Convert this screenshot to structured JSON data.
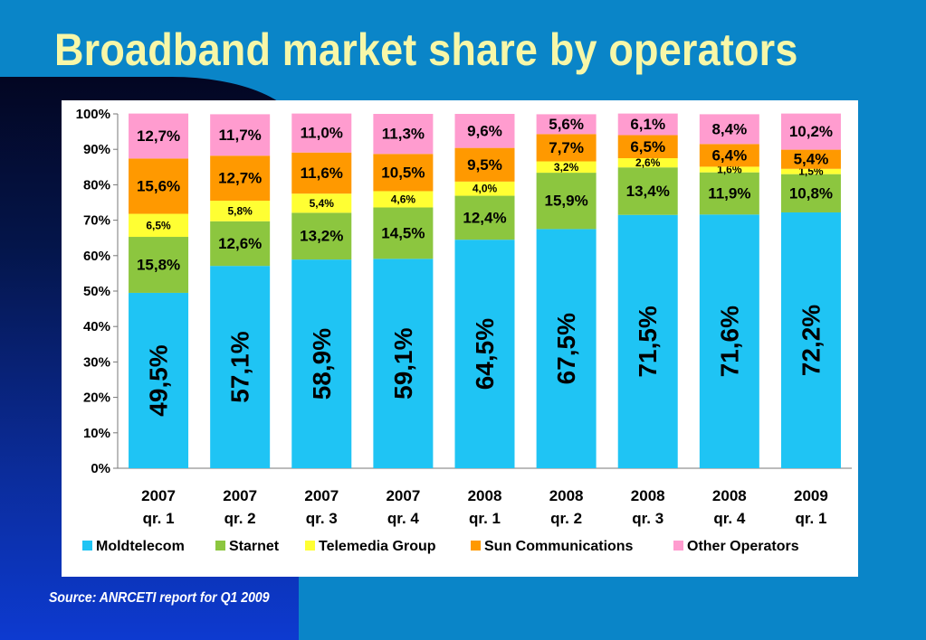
{
  "slide": {
    "title": "Broadband market share by operators",
    "source": "Source: ANRCETI report for Q1 2009"
  },
  "colors": {
    "Moldtelecom": "#1fc4f4",
    "Starnet": "#8cc63f",
    "Telemedia Group": "#ffff33",
    "Sun Communications": "#ff9900",
    "Other Operators": "#ff9ccf"
  },
  "chart_data": {
    "type": "bar",
    "stacked": true,
    "title": "",
    "xlabel": "",
    "ylabel": "",
    "ylim": [
      0,
      100
    ],
    "y_ticks": [
      "0%",
      "10%",
      "20%",
      "30%",
      "40%",
      "50%",
      "60%",
      "70%",
      "80%",
      "90%",
      "100%"
    ],
    "categories": [
      [
        "2007",
        "qr. 1"
      ],
      [
        "2007",
        "qr. 2"
      ],
      [
        "2007",
        "qr. 3"
      ],
      [
        "2007",
        "qr. 4"
      ],
      [
        "2008",
        "qr. 1"
      ],
      [
        "2008",
        "qr. 2"
      ],
      [
        "2008",
        "qr. 3"
      ],
      [
        "2008",
        "qr. 4"
      ],
      [
        "2009",
        "qr. 1"
      ]
    ],
    "legend_position": "bottom",
    "series": [
      {
        "name": "Moldtelecom",
        "values": [
          49.5,
          57.1,
          58.9,
          59.1,
          64.5,
          67.5,
          71.5,
          71.6,
          72.2
        ],
        "labels": [
          "49,5%",
          "57,1%",
          "58,9%",
          "59,1%",
          "64,5%",
          "67,5%",
          "71,5%",
          "71,6%",
          "72,2%"
        ]
      },
      {
        "name": "Starnet",
        "values": [
          15.8,
          12.6,
          13.2,
          14.5,
          12.4,
          15.9,
          13.4,
          11.9,
          10.8
        ],
        "labels": [
          "15,8%",
          "12,6%",
          "13,2%",
          "14,5%",
          "12,4%",
          "15,9%",
          "13,4%",
          "11,9%",
          "10,8%"
        ]
      },
      {
        "name": "Telemedia Group",
        "values": [
          6.5,
          5.8,
          5.4,
          4.6,
          4.0,
          3.2,
          2.6,
          1.6,
          1.5
        ],
        "labels": [
          "6,5%",
          "5,8%",
          "5,4%",
          "4,6%",
          "4,0%",
          "3,2%",
          "2,6%",
          "1,6%",
          "1,5%"
        ]
      },
      {
        "name": "Sun Communications",
        "values": [
          15.6,
          12.7,
          11.6,
          10.5,
          9.5,
          7.7,
          6.5,
          6.4,
          5.4
        ],
        "labels": [
          "15,6%",
          "12,7%",
          "11,6%",
          "10,5%",
          "9,5%",
          "7,7%",
          "6,5%",
          "6,4%",
          "5,4%"
        ]
      },
      {
        "name": "Other Operators",
        "values": [
          12.7,
          11.7,
          11.0,
          11.3,
          9.6,
          5.6,
          6.1,
          8.4,
          10.2
        ],
        "labels": [
          "12,7%",
          "11,7%",
          "11,0%",
          "11,3%",
          "9,6%",
          "5,6%",
          "6,1%",
          "8,4%",
          "10,2%"
        ]
      }
    ]
  }
}
